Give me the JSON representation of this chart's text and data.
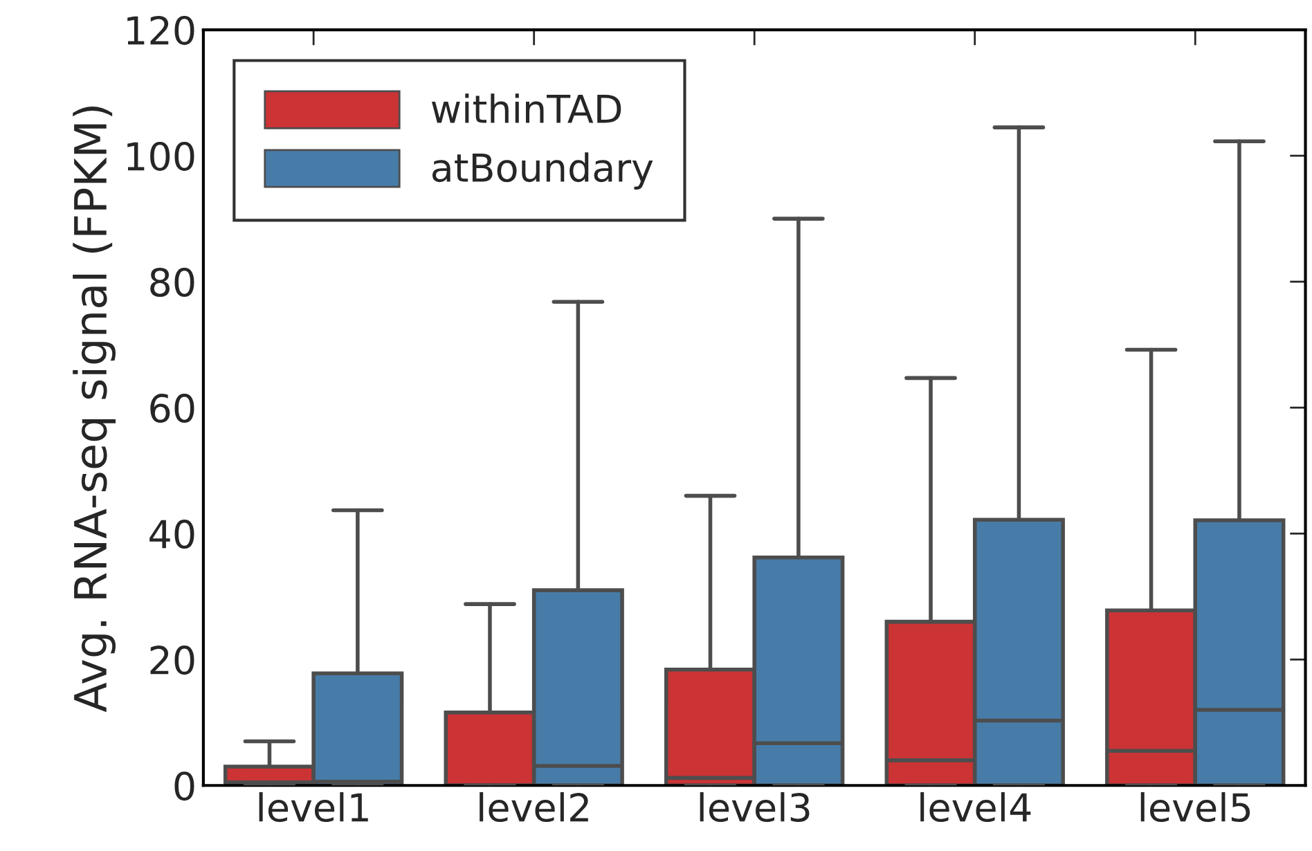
{
  "chart_data": {
    "type": "box",
    "ylabel": "Avg. RNA-seq signal (FPKM)",
    "categories": [
      "level1",
      "level2",
      "level3",
      "level4",
      "level5"
    ],
    "ylim": [
      0,
      120
    ],
    "yticks": [
      0,
      20,
      40,
      60,
      80,
      100,
      120
    ],
    "grid": false,
    "legend": "top left",
    "series": [
      {
        "name": "withinTAD",
        "color": "#cb3335",
        "boxes": [
          {
            "low": 0,
            "q1": 0,
            "median": 0.5,
            "q3": 3,
            "high": 7
          },
          {
            "low": 0,
            "q1": 0,
            "median": 0,
            "q3": 11.6,
            "high": 28.8
          },
          {
            "low": 0,
            "q1": 0,
            "median": 1.2,
            "q3": 18.4,
            "high": 46
          },
          {
            "low": 0,
            "q1": 0,
            "median": 4,
            "q3": 26,
            "high": 64.7
          },
          {
            "low": 0,
            "q1": 0,
            "median": 5.5,
            "q3": 27.8,
            "high": 69.2
          }
        ]
      },
      {
        "name": "atBoundary",
        "color": "#477ca8",
        "boxes": [
          {
            "low": 0,
            "q1": 0,
            "median": 0.6,
            "q3": 17.8,
            "high": 43.7
          },
          {
            "low": 0,
            "q1": 0,
            "median": 3.1,
            "q3": 31,
            "high": 76.8
          },
          {
            "low": 0,
            "q1": 0,
            "median": 6.7,
            "q3": 36.2,
            "high": 90
          },
          {
            "low": 0,
            "q1": 0,
            "median": 10.3,
            "q3": 42.2,
            "high": 104.5
          },
          {
            "low": 0,
            "q1": 0,
            "median": 12,
            "q3": 42.1,
            "high": 102.3
          }
        ]
      }
    ]
  }
}
